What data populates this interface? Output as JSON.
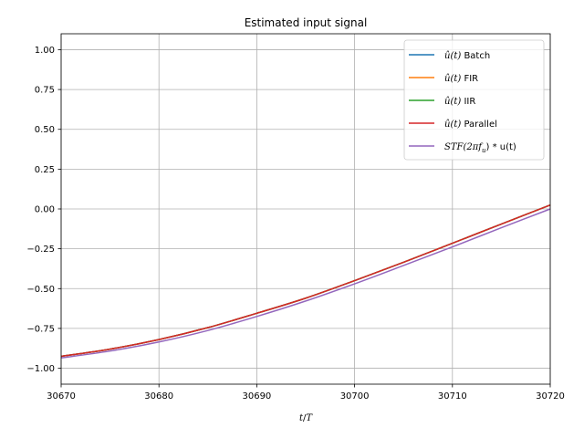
{
  "chart_data": {
    "type": "line",
    "title": "Estimated input signal",
    "xlabel": "t/T",
    "ylabel": "",
    "xlim": [
      30670,
      30720
    ],
    "ylim": [
      -1.1,
      1.1
    ],
    "xticks": [
      30670,
      30680,
      30690,
      30700,
      30710,
      30720
    ],
    "xtick_labels": [
      "30670",
      "30680",
      "30690",
      "30700",
      "30710",
      "30720"
    ],
    "yticks": [
      -1.0,
      -0.75,
      -0.5,
      -0.25,
      0.0,
      0.25,
      0.5,
      0.75,
      1.0
    ],
    "ytick_labels": [
      "−1.00",
      "−0.75",
      "−0.50",
      "−0.25",
      "0.00",
      "0.25",
      "0.50",
      "0.75",
      "1.00"
    ],
    "grid": true,
    "legend_position": "top-right",
    "x": [
      30670,
      30675,
      30680,
      30685,
      30690,
      30695,
      30700,
      30705,
      30710,
      30715,
      30720
    ],
    "series": [
      {
        "name": "û(t) Batch",
        "legend_prefix": "û(t)",
        "legend_suffix": " Batch",
        "color": "#1f77b4",
        "values": [
          -0.925,
          -0.88,
          -0.82,
          -0.745,
          -0.655,
          -0.56,
          -0.45,
          -0.335,
          -0.215,
          -0.095,
          0.025
        ]
      },
      {
        "name": "û(t) FIR",
        "legend_prefix": "û(t)",
        "legend_suffix": " FIR",
        "color": "#ff7f0e",
        "values": [
          -0.925,
          -0.88,
          -0.82,
          -0.745,
          -0.655,
          -0.56,
          -0.45,
          -0.335,
          -0.215,
          -0.095,
          0.025
        ]
      },
      {
        "name": "û(t) IIR",
        "legend_prefix": "û(t)",
        "legend_suffix": " IIR",
        "color": "#2ca02c",
        "values": [
          -0.925,
          -0.88,
          -0.82,
          -0.745,
          -0.655,
          -0.56,
          -0.45,
          -0.335,
          -0.215,
          -0.095,
          0.025
        ]
      },
      {
        "name": "û(t) Parallel",
        "legend_prefix": "û(t)",
        "legend_suffix": " Parallel",
        "color": "#d62728",
        "values": [
          -0.925,
          -0.88,
          -0.82,
          -0.745,
          -0.655,
          -0.56,
          -0.45,
          -0.335,
          -0.215,
          -0.095,
          0.025
        ]
      },
      {
        "name": "STF(2πf_u) * u(t)",
        "legend_prefix": "STF(2πf",
        "legend_sub": "u",
        "legend_suffix": ") * u(t)",
        "color": "#9467bd",
        "values": [
          -0.935,
          -0.892,
          -0.835,
          -0.763,
          -0.675,
          -0.578,
          -0.47,
          -0.355,
          -0.238,
          -0.118,
          0.0
        ]
      }
    ]
  }
}
